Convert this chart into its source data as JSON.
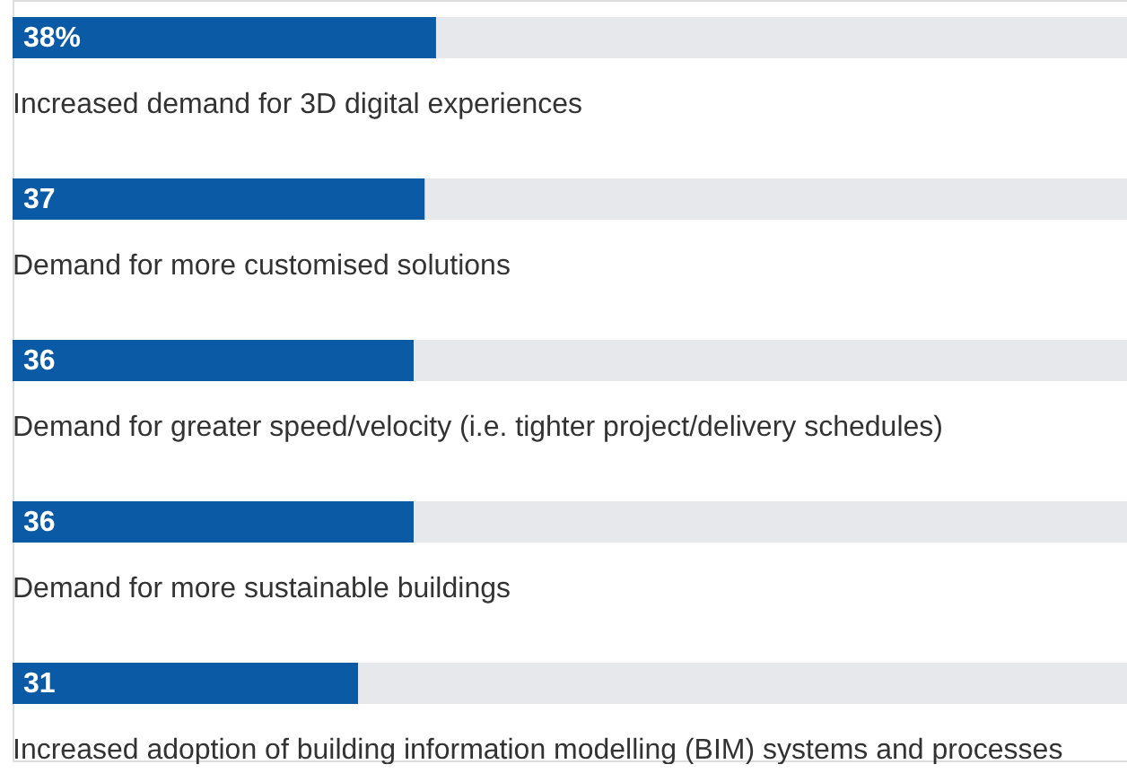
{
  "chart_data": {
    "type": "bar",
    "orientation": "horizontal",
    "stacked": true,
    "categories": [
      "Increased demand for 3D digital experiences",
      "Demand for more customised solutions",
      "Demand for greater speed/velocity (i.e. tighter project/delivery schedules)",
      "Demand for more sustainable buildings",
      "Increased adoption of building information modelling (BIM) systems and processes"
    ],
    "series": [
      {
        "color": "#0b5aa6",
        "values": [
          38,
          37,
          36,
          36,
          31
        ],
        "value_labels": [
          "38%",
          "37",
          "36",
          "36",
          "31"
        ]
      },
      {
        "color": "#e6e8eb",
        "values": [
          62,
          63,
          64,
          64,
          69
        ]
      }
    ],
    "xlim": [
      0,
      100
    ],
    "tick_labels": false,
    "grid": false,
    "legend": false
  }
}
